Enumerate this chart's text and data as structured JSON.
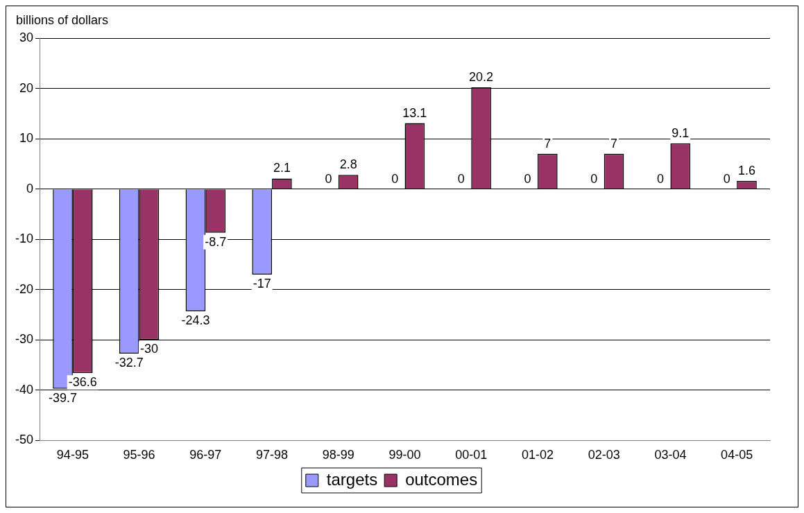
{
  "chart_data": {
    "type": "bar",
    "ylabel": "billions of dollars",
    "categories": [
      "94-95",
      "95-96",
      "96-97",
      "97-98",
      "98-99",
      "99-00",
      "00-01",
      "01-02",
      "02-03",
      "03-04",
      "04-05"
    ],
    "series": [
      {
        "name": "targets",
        "color": "#9999ff",
        "values": [
          -39.7,
          -32.7,
          -24.3,
          -17,
          0,
          0,
          0,
          0,
          0,
          0,
          0
        ]
      },
      {
        "name": "outcomes",
        "color": "#993366",
        "values": [
          -36.6,
          -30,
          -8.7,
          2.1,
          2.8,
          13.1,
          20.2,
          7,
          7,
          9.1,
          1.6
        ]
      }
    ],
    "ylim": [
      -50,
      30
    ],
    "yticks": [
      -50,
      -40,
      -30,
      -20,
      -10,
      0,
      10,
      20,
      30
    ],
    "grid": "y",
    "legend": "bottom",
    "data_labels": true
  }
}
